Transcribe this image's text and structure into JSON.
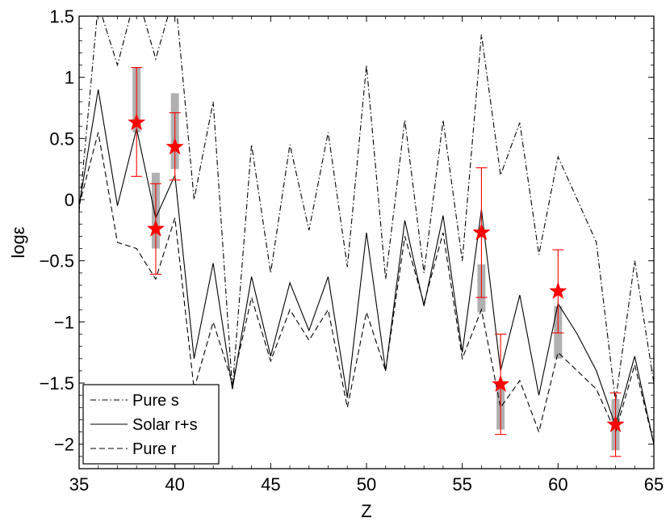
{
  "chart_data": {
    "type": "line",
    "xlabel": "Z",
    "ylabel": "logε",
    "xlim": [
      35,
      65
    ],
    "ylim": [
      -2.2,
      1.5
    ],
    "xticks": [
      "35",
      "40",
      "45",
      "50",
      "55",
      "60",
      "65"
    ],
    "yticks": [
      "-2",
      "-1.5",
      "-1",
      "-0.5",
      "0",
      "0.5",
      "1",
      "1.5"
    ],
    "grid": false,
    "legend_position": "bottom-left",
    "series": [
      {
        "name": "Pure s",
        "style": "dash-dot",
        "color": "#000000",
        "x": [
          35,
          36,
          37,
          38,
          39,
          40,
          41,
          42,
          43,
          44,
          45,
          46,
          47,
          48,
          49,
          50,
          51,
          52,
          53,
          54,
          55,
          56,
          57,
          58,
          59,
          60,
          61,
          62,
          63,
          64,
          65
        ],
        "y": [
          -0.1,
          1.6,
          1.1,
          1.7,
          1.15,
          1.7,
          0.0,
          0.8,
          -1.55,
          0.45,
          -0.6,
          0.45,
          -0.25,
          0.55,
          -0.55,
          1.1,
          -0.65,
          0.65,
          -0.6,
          0.65,
          -0.5,
          1.35,
          0.2,
          0.63,
          -0.45,
          0.35,
          0.0,
          -0.35,
          -1.65,
          -0.5,
          -1.5
        ]
      },
      {
        "name": "Solar r+s",
        "style": "solid",
        "color": "#000000",
        "x": [
          35,
          36,
          37,
          38,
          39,
          40,
          41,
          42,
          43,
          44,
          45,
          46,
          47,
          48,
          49,
          50,
          51,
          52,
          53,
          54,
          55,
          56,
          57,
          58,
          59,
          60,
          61,
          62,
          63,
          64,
          65
        ],
        "y": [
          -0.05,
          0.9,
          -0.05,
          0.58,
          -0.15,
          0.2,
          -1.3,
          -0.52,
          -1.55,
          -0.63,
          -1.28,
          -0.68,
          -1.07,
          -0.63,
          -1.62,
          -0.27,
          -1.4,
          -0.17,
          -0.87,
          -0.13,
          -1.25,
          -0.08,
          -1.4,
          -0.78,
          -1.6,
          -0.85,
          -1.1,
          -1.4,
          -1.85,
          -1.28,
          -2.0
        ]
      },
      {
        "name": "Pure r",
        "style": "dashed",
        "color": "#000000",
        "x": [
          35,
          36,
          37,
          38,
          39,
          40,
          41,
          42,
          43,
          44,
          45,
          46,
          47,
          48,
          49,
          50,
          51,
          52,
          53,
          54,
          55,
          56,
          57,
          58,
          59,
          60,
          61,
          62,
          63,
          64,
          65
        ],
        "y": [
          -0.05,
          0.55,
          -0.35,
          -0.4,
          -0.65,
          -0.15,
          -1.55,
          -1.0,
          -1.5,
          -0.8,
          -1.32,
          -0.9,
          -1.15,
          -0.9,
          -1.7,
          -0.92,
          -1.4,
          -0.3,
          -0.85,
          -0.27,
          -1.3,
          -0.9,
          -1.7,
          -1.48,
          -1.9,
          -1.25,
          -1.4,
          -1.55,
          -1.9,
          -1.35,
          -2.0
        ]
      }
    ],
    "observed": {
      "name": "",
      "marker": "star",
      "color": "#ff0000",
      "x": [
        38,
        39,
        40,
        56,
        57,
        60,
        63
      ],
      "y": [
        0.63,
        -0.24,
        0.43,
        -0.27,
        -1.51,
        -0.75,
        -1.84
      ],
      "err_low": [
        0.44,
        0.37,
        0.27,
        0.53,
        0.41,
        0.34,
        0.26
      ],
      "err_high": [
        0.45,
        0.37,
        0.28,
        0.53,
        0.41,
        0.34,
        0.26
      ]
    },
    "ranges": {
      "color": "#b0b0b0",
      "x": [
        38,
        39,
        40,
        56,
        57,
        60,
        63
      ],
      "low": [
        0.55,
        -0.4,
        0.25,
        -0.92,
        -1.88,
        -1.3,
        -2.05
      ],
      "high": [
        1.08,
        0.22,
        0.87,
        -0.53,
        -1.5,
        -0.87,
        -1.63
      ]
    }
  }
}
